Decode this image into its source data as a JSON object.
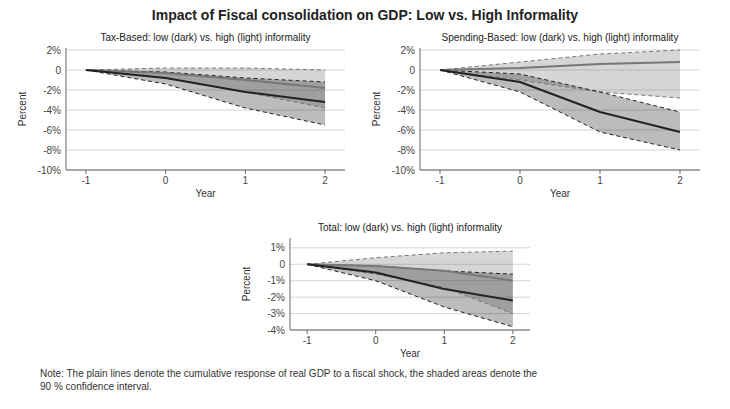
{
  "title": "Impact of Fiscal consolidation on GDP: Low vs. High Informality",
  "note": "Note: The plain lines denote the cumulative response of real GDP to a fiscal shock, the shaded areas denote the\n90 % confidence interval.",
  "chart_data": [
    {
      "type": "line",
      "title": "Tax-Based: low (dark) vs. high (light) informality",
      "x_label": "Year",
      "y_label": "Percent",
      "x": [
        -1,
        0,
        1,
        2
      ],
      "xlim": [
        -1.25,
        2.25
      ],
      "xticks": [
        -1,
        0,
        1,
        2
      ],
      "ylim": [
        -0.1,
        0.022
      ],
      "yticks": [
        {
          "value": 0.02,
          "label": "2%"
        },
        0,
        {
          "value": -0.02,
          "label": "-2%"
        },
        {
          "value": -0.04,
          "label": "-4%"
        },
        {
          "value": -0.06,
          "label": "-6%"
        },
        {
          "value": -0.08,
          "label": "-8%"
        },
        {
          "value": -0.1,
          "label": "-10%"
        }
      ],
      "grid": true,
      "series": [
        {
          "color": "#777777",
          "values": [
            0.0,
            -0.003,
            -0.01,
            -0.018
          ],
          "upper": [
            0.0,
            0.002,
            0.002,
            0.0
          ],
          "lower": [
            0.0,
            -0.008,
            -0.022,
            -0.038
          ]
        },
        {
          "color": "#222222",
          "values": [
            0.0,
            -0.008,
            -0.022,
            -0.032
          ],
          "upper": [
            0.0,
            -0.002,
            -0.008,
            -0.012
          ],
          "lower": [
            0.0,
            -0.014,
            -0.038,
            -0.055
          ]
        }
      ]
    },
    {
      "type": "line",
      "title": "Spending-Based: low (dark) vs. high (light) informality",
      "x_label": "Year",
      "y_label": "Percent",
      "x": [
        -1,
        0,
        1,
        2
      ],
      "xlim": [
        -1.25,
        2.25
      ],
      "xticks": [
        -1,
        0,
        1,
        2
      ],
      "ylim": [
        -0.1,
        0.022
      ],
      "yticks": [
        {
          "value": 0.02,
          "label": "2%"
        },
        0,
        {
          "value": -0.02,
          "label": "-2%"
        },
        {
          "value": -0.04,
          "label": "-4%"
        },
        {
          "value": -0.06,
          "label": "-6%"
        },
        {
          "value": -0.08,
          "label": "-8%"
        },
        {
          "value": -0.1,
          "label": "-10%"
        }
      ],
      "grid": true,
      "series": [
        {
          "color": "#777777",
          "values": [
            0.0,
            0.002,
            0.006,
            0.008
          ],
          "upper": [
            0.0,
            0.008,
            0.016,
            0.02
          ],
          "lower": [
            0.0,
            -0.01,
            -0.022,
            -0.028
          ]
        },
        {
          "color": "#222222",
          "values": [
            0.0,
            -0.012,
            -0.042,
            -0.062
          ],
          "upper": [
            0.0,
            -0.004,
            -0.022,
            -0.042
          ],
          "lower": [
            0.0,
            -0.022,
            -0.062,
            -0.08
          ]
        }
      ]
    },
    {
      "type": "line",
      "title": "Total: low (dark) vs. high (light) informality",
      "x_label": "Year",
      "y_label": "Percent",
      "x": [
        -1,
        0,
        1,
        2
      ],
      "xlim": [
        -1.25,
        2.25
      ],
      "xticks": [
        -1,
        0,
        1,
        2
      ],
      "ylim": [
        -0.04,
        0.016
      ],
      "yticks": [
        {
          "value": 0.01,
          "label": "1%"
        },
        0,
        {
          "value": -0.01,
          "label": "-1%"
        },
        {
          "value": -0.02,
          "label": "-2%"
        },
        {
          "value": -0.03,
          "label": "-3%"
        },
        {
          "value": -0.04,
          "label": "-4%"
        }
      ],
      "grid": true,
      "series": [
        {
          "color": "#777777",
          "values": [
            0.0,
            -0.001,
            -0.004,
            -0.01
          ],
          "upper": [
            0.0,
            0.004,
            0.007,
            0.008
          ],
          "lower": [
            0.0,
            -0.006,
            -0.014,
            -0.03
          ]
        },
        {
          "color": "#222222",
          "values": [
            0.0,
            -0.005,
            -0.015,
            -0.022
          ],
          "upper": [
            0.0,
            -0.001,
            -0.004,
            -0.006
          ],
          "lower": [
            0.0,
            -0.01,
            -0.026,
            -0.038
          ]
        }
      ]
    }
  ]
}
